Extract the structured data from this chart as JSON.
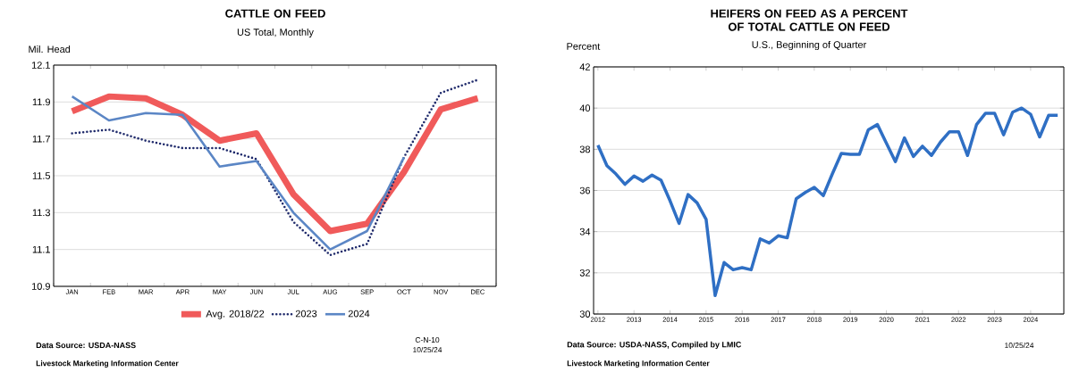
{
  "chart_data": [
    {
      "type": "line",
      "title": "CATTLE ON FEED",
      "subtitle": "US Total, Monthly",
      "ylabel": "Mil. Head",
      "categories": [
        "JAN",
        "FEB",
        "MAR",
        "APR",
        "MAY",
        "JUN",
        "JUL",
        "AUG",
        "SEP",
        "OCT",
        "NOV",
        "DEC"
      ],
      "series": [
        {
          "name": "Avg. 2018/22",
          "color": "#f05a5a",
          "line_style": "solid",
          "values": [
            11.85,
            11.93,
            11.92,
            11.83,
            11.69,
            11.73,
            11.4,
            11.2,
            11.24,
            11.52,
            11.86,
            11.92
          ]
        },
        {
          "name": "2023",
          "color": "#1f2a6b",
          "line_style": "dotted",
          "values": [
            11.73,
            11.75,
            11.69,
            11.65,
            11.65,
            11.59,
            11.25,
            11.07,
            11.13,
            11.6,
            11.95,
            12.02
          ]
        },
        {
          "name": "2024",
          "color": "#5b86c5",
          "line_style": "solid",
          "values": [
            11.93,
            11.8,
            11.84,
            11.83,
            11.55,
            11.58,
            11.3,
            11.1,
            11.2,
            11.6,
            null,
            null
          ]
        }
      ],
      "ylim": [
        10.9,
        12.1
      ],
      "yticks": [
        10.9,
        11.1,
        11.3,
        11.5,
        11.7,
        11.9,
        12.1
      ],
      "grid": "y",
      "legend": "bottom",
      "annotations": [
        "Data Source:  USDA-NASS",
        "Livestock Marketing Information Center",
        "C-N-10",
        "10/25/24"
      ]
    },
    {
      "type": "line",
      "title": "HEIFERS ON FEED AS A PERCENT OF TOTAL CATTLE ON FEED",
      "subtitle": "U.S., Beginning of Quarter",
      "ylabel": "Percent",
      "x": [
        2012.0,
        2012.25,
        2012.5,
        2012.75,
        2013.0,
        2013.25,
        2013.5,
        2013.75,
        2014.0,
        2014.25,
        2014.5,
        2014.75,
        2015.0,
        2015.25,
        2015.5,
        2015.75,
        2016.0,
        2016.25,
        2016.5,
        2016.75,
        2017.0,
        2017.25,
        2017.5,
        2017.75,
        2018.0,
        2018.25,
        2018.5,
        2018.75,
        2019.0,
        2019.25,
        2019.5,
        2019.75,
        2020.0,
        2020.25,
        2020.5,
        2020.75,
        2021.0,
        2021.25,
        2021.5,
        2021.75,
        2022.0,
        2022.25,
        2022.5,
        2022.75,
        2023.0,
        2023.25,
        2023.5,
        2023.75,
        2024.0,
        2024.25,
        2024.5,
        2024.75
      ],
      "series": [
        {
          "color": "#2f6fc4",
          "line_style": "solid",
          "values": [
            38.2,
            37.2,
            36.8,
            36.3,
            36.7,
            36.45,
            36.75,
            36.5,
            35.5,
            34.4,
            35.8,
            35.4,
            34.6,
            30.9,
            32.5,
            32.15,
            32.25,
            32.15,
            33.65,
            33.45,
            33.8,
            33.7,
            35.6,
            35.9,
            36.15,
            35.75,
            36.8,
            37.8,
            37.75,
            37.75,
            38.95,
            39.2,
            38.3,
            37.4,
            38.55,
            37.65,
            38.15,
            37.7,
            38.35,
            38.85,
            38.85,
            37.7,
            39.2,
            39.75,
            39.75,
            38.7,
            39.8,
            40.0,
            39.7,
            38.6,
            39.65,
            39.65
          ]
        }
      ],
      "xlim": [
        2011.88,
        2024.92
      ],
      "xticks": [
        2012,
        2013,
        2014,
        2015,
        2016,
        2017,
        2018,
        2019,
        2020,
        2021,
        2022,
        2023,
        2024
      ],
      "ylim": [
        30,
        42
      ],
      "yticks": [
        30,
        32,
        34,
        36,
        38,
        40,
        42
      ],
      "grid": "y",
      "annotations": [
        "Data Source:  USDA-NASS, Compiled  by LMIC",
        "Livestock Marketing Information Center",
        "10/25/24"
      ]
    }
  ]
}
